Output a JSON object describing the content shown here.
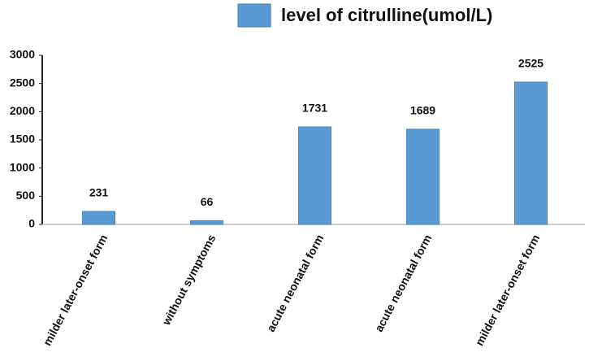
{
  "chart_data": {
    "type": "bar",
    "categories": [
      "milder later-onset form",
      "without symptoms",
      "acute neonatal form",
      "acute neonatal form",
      "milder later-onset form"
    ],
    "series": [
      {
        "name": "level of citrulline(umol/L)",
        "color": "#5b9bd5",
        "values": [
          231,
          66,
          1731,
          1689,
          2525
        ]
      }
    ],
    "ylim": [
      0,
      3000
    ],
    "yticks": [
      0,
      500,
      1000,
      1500,
      2000,
      2500,
      3000
    ],
    "grid": false,
    "legend": "top"
  }
}
